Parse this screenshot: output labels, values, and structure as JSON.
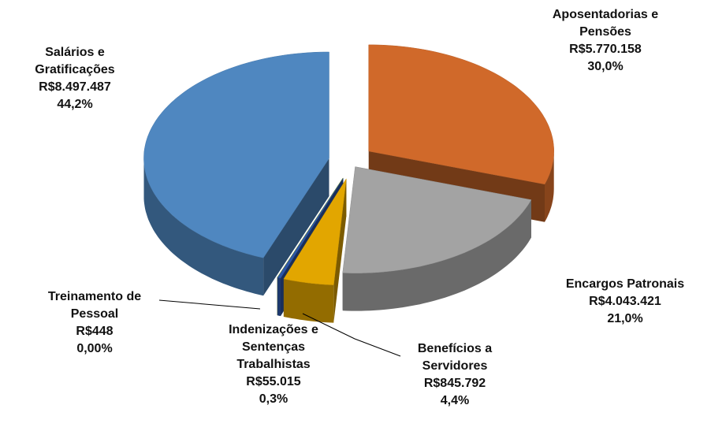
{
  "chart_data": {
    "type": "pie3d",
    "categories": [
      "Aposentadorias e Pensões",
      "Encargos Patronais",
      "Benefícios a Servidores",
      "Indenizações e Sentenças Trabalhistas",
      "Treinamento de Pessoal",
      "Salários e Gratificações"
    ],
    "values": [
      5770158,
      4043421,
      845792,
      55015,
      448,
      8497487
    ],
    "value_labels": [
      "R$5.770.158",
      "R$4.043.421",
      "R$845.792",
      "R$55.015",
      "R$448",
      "R$8.497.487"
    ],
    "percentages": [
      30.0,
      21.0,
      4.4,
      0.3,
      0.0,
      44.2
    ],
    "percentage_labels": [
      "30,0%",
      "21,0%",
      "4,4%",
      "0,3%",
      "0,00%",
      "44,2%"
    ],
    "colors": [
      "#d0692a",
      "#a3a3a3",
      "#e2a600",
      "#2d56a6",
      "#7a9a3a",
      "#4f87c0"
    ]
  }
}
